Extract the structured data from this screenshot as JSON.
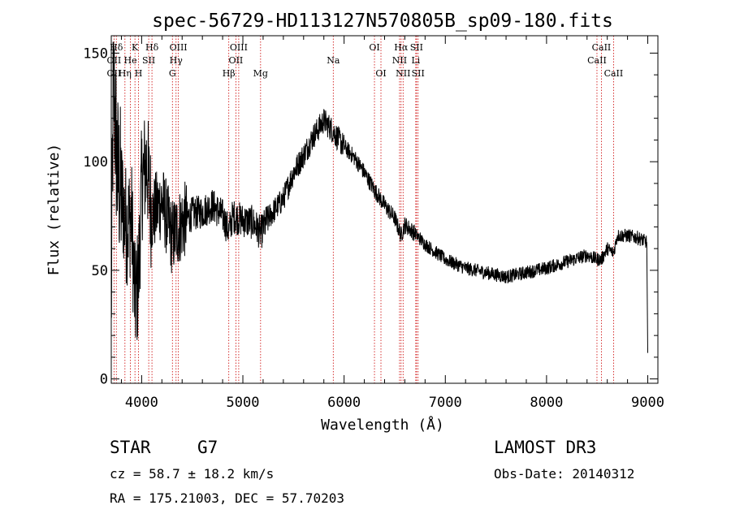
{
  "chart_data": {
    "type": "line",
    "title": "spec-56729-HD113127N570805B_sp09-180.fits",
    "xlabel": "Wavelength (Å)",
    "ylabel": "Flux (relative)",
    "xlim": [
      3700,
      9100
    ],
    "ylim": [
      -2,
      158
    ],
    "xticks": [
      4000,
      5000,
      6000,
      7000,
      8000,
      9000
    ],
    "yticks": [
      0,
      50,
      100,
      150
    ],
    "line_color": "#000000",
    "marker_color": "#cc0000",
    "anchors": [
      {
        "x": 3700,
        "y": 30
      },
      {
        "x": 3720,
        "y": 140
      },
      {
        "x": 3760,
        "y": 95
      },
      {
        "x": 3800,
        "y": 85
      },
      {
        "x": 3850,
        "y": 70
      },
      {
        "x": 3900,
        "y": 75
      },
      {
        "x": 3935,
        "y": 35
      },
      {
        "x": 3968,
        "y": 45
      },
      {
        "x": 4000,
        "y": 90
      },
      {
        "x": 4050,
        "y": 100
      },
      {
        "x": 4100,
        "y": 75
      },
      {
        "x": 4200,
        "y": 82
      },
      {
        "x": 4300,
        "y": 65
      },
      {
        "x": 4400,
        "y": 72
      },
      {
        "x": 4500,
        "y": 76
      },
      {
        "x": 4600,
        "y": 77
      },
      {
        "x": 4700,
        "y": 80
      },
      {
        "x": 4800,
        "y": 75
      },
      {
        "x": 4861,
        "y": 68
      },
      {
        "x": 4900,
        "y": 75
      },
      {
        "x": 5000,
        "y": 73
      },
      {
        "x": 5100,
        "y": 72
      },
      {
        "x": 5175,
        "y": 67
      },
      {
        "x": 5250,
        "y": 74
      },
      {
        "x": 5400,
        "y": 83
      },
      {
        "x": 5500,
        "y": 95
      },
      {
        "x": 5600,
        "y": 103
      },
      {
        "x": 5700,
        "y": 112
      },
      {
        "x": 5800,
        "y": 119
      },
      {
        "x": 5893,
        "y": 114
      },
      {
        "x": 5950,
        "y": 110
      },
      {
        "x": 6000,
        "y": 107
      },
      {
        "x": 6100,
        "y": 102
      },
      {
        "x": 6200,
        "y": 95
      },
      {
        "x": 6300,
        "y": 87
      },
      {
        "x": 6400,
        "y": 80
      },
      {
        "x": 6500,
        "y": 74
      },
      {
        "x": 6563,
        "y": 66
      },
      {
        "x": 6600,
        "y": 71
      },
      {
        "x": 6700,
        "y": 67
      },
      {
        "x": 6800,
        "y": 62
      },
      {
        "x": 7000,
        "y": 55
      },
      {
        "x": 7200,
        "y": 51
      },
      {
        "x": 7400,
        "y": 49
      },
      {
        "x": 7600,
        "y": 47
      },
      {
        "x": 7800,
        "y": 49
      },
      {
        "x": 8000,
        "y": 51
      },
      {
        "x": 8200,
        "y": 54
      },
      {
        "x": 8400,
        "y": 57
      },
      {
        "x": 8498,
        "y": 55
      },
      {
        "x": 8542,
        "y": 55
      },
      {
        "x": 8600,
        "y": 60
      },
      {
        "x": 8662,
        "y": 58
      },
      {
        "x": 8700,
        "y": 66
      },
      {
        "x": 8800,
        "y": 66
      },
      {
        "x": 8900,
        "y": 65
      },
      {
        "x": 8990,
        "y": 63
      },
      {
        "x": 9000,
        "y": 12
      }
    ],
    "lines": [
      {
        "label": "Hδ",
        "x": 3750,
        "row": 0
      },
      {
        "label": "OII",
        "x": 3727,
        "row": 1
      },
      {
        "label": "OII",
        "x": 3727,
        "row": 2
      },
      {
        "label": "K",
        "x": 3934,
        "row": 0
      },
      {
        "label": "He",
        "x": 3889,
        "row": 1
      },
      {
        "label": "Hη",
        "x": 3835,
        "row": 2
      },
      {
        "label": "SII",
        "x": 4070,
        "row": 1
      },
      {
        "label": "H",
        "x": 3969,
        "row": 2
      },
      {
        "label": "Hδ",
        "x": 4102,
        "row": 0
      },
      {
        "label": "OIII",
        "x": 4363,
        "row": 0
      },
      {
        "label": "Hγ",
        "x": 4340,
        "row": 1
      },
      {
        "label": "G",
        "x": 4304,
        "row": 2
      },
      {
        "label": "OIII",
        "x": 4959,
        "row": 0
      },
      {
        "label": "OII",
        "x": 4931,
        "row": 1
      },
      {
        "label": "Hβ",
        "x": 4861,
        "row": 2
      },
      {
        "label": "Mg",
        "x": 5175,
        "row": 2
      },
      {
        "label": "Na",
        "x": 5893,
        "row": 1
      },
      {
        "label": "OI",
        "x": 6300,
        "row": 0
      },
      {
        "label": "OI",
        "x": 6364,
        "row": 2
      },
      {
        "label": "Hα",
        "x": 6563,
        "row": 0
      },
      {
        "label": "NII",
        "x": 6548,
        "row": 1
      },
      {
        "label": "NII",
        "x": 6583,
        "row": 2
      },
      {
        "label": "SII",
        "x": 6716,
        "row": 0
      },
      {
        "label": "Li",
        "x": 6708,
        "row": 1
      },
      {
        "label": "SII",
        "x": 6731,
        "row": 2
      },
      {
        "label": "CaII",
        "x": 8542,
        "row": 0
      },
      {
        "label": "CaII",
        "x": 8498,
        "row": 1
      },
      {
        "label": "CaII",
        "x": 8662,
        "row": 2
      }
    ]
  },
  "info": {
    "class": "STAR",
    "subclass": "G7",
    "survey": "LAMOST DR3",
    "cz": "cz = 58.7 ± 18.2 km/s",
    "obs_date": "Obs-Date: 20140312",
    "radec": "RA = 175.21003, DEC =  57.70203"
  }
}
